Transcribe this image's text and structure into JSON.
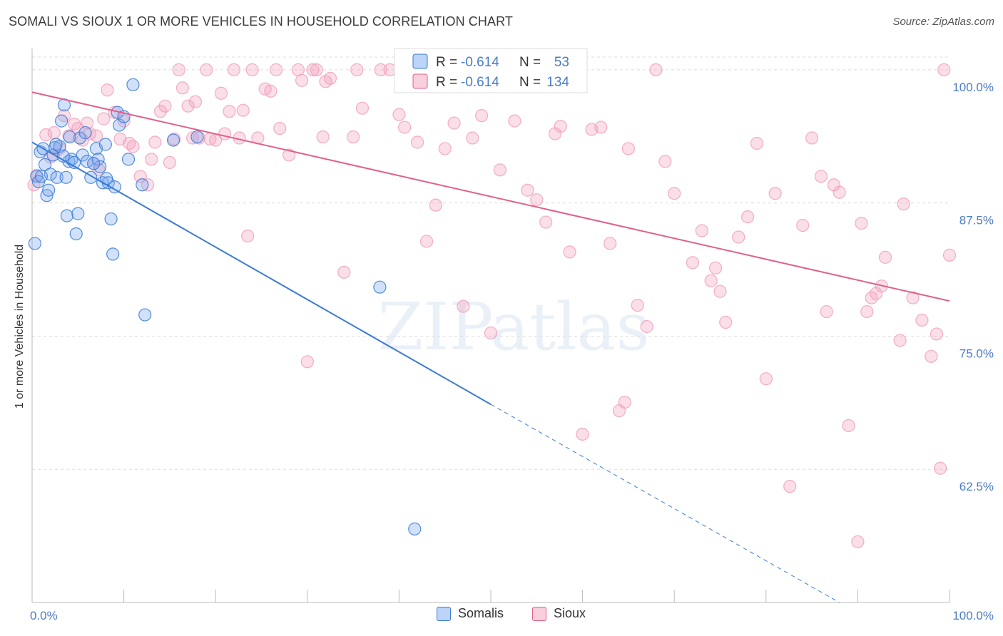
{
  "colors": {
    "somalis": "#7aaaf0",
    "somalis_line": "#3a7bd5",
    "sioux": "#f2a0bc",
    "sioux_line": "#e0608c",
    "tick_text": "#4a7cc7"
  },
  "chart_data": {
    "type": "scatter",
    "title": "SOMALI VS SIOUX 1 OR MORE VEHICLES IN HOUSEHOLD CORRELATION CHART",
    "source": "Source: ZipAtlas.com",
    "ylabel": "1 or more Vehicles in Household",
    "xlim": [
      0,
      100
    ],
    "ylim": [
      50,
      102
    ],
    "x_tick_labels": [
      "0.0%",
      "100.0%"
    ],
    "y_ticks": [
      62.5,
      75.0,
      87.5,
      100.0
    ],
    "y_tick_labels": [
      "62.5%",
      "75.0%",
      "87.5%",
      "100.0%"
    ],
    "grid": true,
    "watermark": "ZIPatlas",
    "legend": {
      "position": "top-center",
      "rows": [
        {
          "r_label": "R = ",
          "r_value": "-0.614",
          "n_label": "N = ",
          "n_value": "53"
        },
        {
          "r_label": "R = ",
          "r_value": "-0.614",
          "n_label": "N = ",
          "n_value": "134"
        }
      ]
    },
    "series": [
      {
        "name": "Somalis",
        "trend": {
          "x0": 0,
          "y0": 93.2,
          "x1": 50,
          "y1": 68.6,
          "dash_to_x": 88,
          "dash_to_y": 50.0
        },
        "points": [
          [
            0.3,
            83.7
          ],
          [
            0.5,
            90.0
          ],
          [
            0.7,
            89.5
          ],
          [
            0.9,
            92.3
          ],
          [
            1.2,
            92.6
          ],
          [
            1.4,
            91.1
          ],
          [
            1.6,
            88.2
          ],
          [
            1.8,
            88.7
          ],
          [
            2.0,
            90.2
          ],
          [
            2.3,
            92.0
          ],
          [
            2.5,
            92.7
          ],
          [
            2.7,
            89.9
          ],
          [
            3.0,
            92.8
          ],
          [
            3.2,
            95.2
          ],
          [
            3.5,
            96.7
          ],
          [
            3.7,
            89.9
          ],
          [
            3.8,
            86.3
          ],
          [
            4.0,
            91.4
          ],
          [
            4.3,
            91.6
          ],
          [
            4.6,
            91.3
          ],
          [
            4.8,
            84.6
          ],
          [
            5.0,
            86.5
          ],
          [
            5.2,
            93.6
          ],
          [
            5.5,
            92.0
          ],
          [
            5.8,
            94.1
          ],
          [
            6.0,
            91.4
          ],
          [
            6.4,
            89.9
          ],
          [
            7.0,
            92.6
          ],
          [
            7.2,
            91.6
          ],
          [
            7.4,
            90.9
          ],
          [
            7.7,
            89.4
          ],
          [
            8.0,
            93.0
          ],
          [
            8.3,
            89.4
          ],
          [
            8.6,
            86.0
          ],
          [
            8.8,
            82.7
          ],
          [
            9.0,
            89.0
          ],
          [
            9.3,
            96.0
          ],
          [
            9.5,
            94.8
          ],
          [
            10.0,
            95.6
          ],
          [
            10.5,
            91.6
          ],
          [
            11.0,
            98.6
          ],
          [
            12.0,
            89.2
          ],
          [
            12.3,
            77.0
          ],
          [
            15.4,
            93.4
          ],
          [
            18.0,
            93.7
          ],
          [
            37.9,
            79.6
          ],
          [
            41.7,
            56.9
          ],
          [
            1.0,
            90.0
          ],
          [
            2.6,
            93.0
          ],
          [
            6.7,
            91.2
          ],
          [
            4.1,
            93.7
          ],
          [
            8.1,
            89.8
          ],
          [
            3.4,
            91.9
          ]
        ]
      },
      {
        "name": "Sioux",
        "trend": {
          "x0": 0,
          "y0": 97.9,
          "x1": 100,
          "y1": 78.3
        },
        "points": [
          [
            0.2,
            89.2
          ],
          [
            0.5,
            90.1
          ],
          [
            1.5,
            93.9
          ],
          [
            2.0,
            91.8
          ],
          [
            2.4,
            94.1
          ],
          [
            3.0,
            92.6
          ],
          [
            3.5,
            95.7
          ],
          [
            4.0,
            93.8
          ],
          [
            4.6,
            94.9
          ],
          [
            5.0,
            94.5
          ],
          [
            5.5,
            93.4
          ],
          [
            6.0,
            95.0
          ],
          [
            6.3,
            94.0
          ],
          [
            6.7,
            91.2
          ],
          [
            7.0,
            93.8
          ],
          [
            7.3,
            90.6
          ],
          [
            7.8,
            95.4
          ],
          [
            8.2,
            98.1
          ],
          [
            9.0,
            96.0
          ],
          [
            9.6,
            93.5
          ],
          [
            10.0,
            95.2
          ],
          [
            10.6,
            93.1
          ],
          [
            11.0,
            92.8
          ],
          [
            11.8,
            90.0
          ],
          [
            12.6,
            89.2
          ],
          [
            13.0,
            91.6
          ],
          [
            13.4,
            93.2
          ],
          [
            14.0,
            96.1
          ],
          [
            14.5,
            96.6
          ],
          [
            15.0,
            91.3
          ],
          [
            15.5,
            93.5
          ],
          [
            16.0,
            100.0
          ],
          [
            16.4,
            98.3
          ],
          [
            17.0,
            96.6
          ],
          [
            17.5,
            93.6
          ],
          [
            17.8,
            97.0
          ],
          [
            18.2,
            93.6
          ],
          [
            19.0,
            100.0
          ],
          [
            19.4,
            93.5
          ],
          [
            20.0,
            93.4
          ],
          [
            20.6,
            97.8
          ],
          [
            21.0,
            94.0
          ],
          [
            21.5,
            96.1
          ],
          [
            22.0,
            100.0
          ],
          [
            22.6,
            93.6
          ],
          [
            23.0,
            96.2
          ],
          [
            23.5,
            84.4
          ],
          [
            24.0,
            100.0
          ],
          [
            24.6,
            93.6
          ],
          [
            25.4,
            98.2
          ],
          [
            26.0,
            98.0
          ],
          [
            26.6,
            100.0
          ],
          [
            27.0,
            94.5
          ],
          [
            28.0,
            92.0
          ],
          [
            29.0,
            100.0
          ],
          [
            29.4,
            99.0
          ],
          [
            30.0,
            72.6
          ],
          [
            30.6,
            100.0
          ],
          [
            31.0,
            100.0
          ],
          [
            31.7,
            93.7
          ],
          [
            32.0,
            98.9
          ],
          [
            32.5,
            99.2
          ],
          [
            34.0,
            81.0
          ],
          [
            35.0,
            93.7
          ],
          [
            35.4,
            100.0
          ],
          [
            36.0,
            96.4
          ],
          [
            38.0,
            100.0
          ],
          [
            39.0,
            100.0
          ],
          [
            40.0,
            95.8
          ],
          [
            40.6,
            94.6
          ],
          [
            42.0,
            93.2
          ],
          [
            43.0,
            83.9
          ],
          [
            44.0,
            87.3
          ],
          [
            45.0,
            92.6
          ],
          [
            46.0,
            95.0
          ],
          [
            47.0,
            77.8
          ],
          [
            48.0,
            93.6
          ],
          [
            49.0,
            95.7
          ],
          [
            50.0,
            75.3
          ],
          [
            51.0,
            90.6
          ],
          [
            52.6,
            95.2
          ],
          [
            54.0,
            88.7
          ],
          [
            55.0,
            87.8
          ],
          [
            56.0,
            85.7
          ],
          [
            57.0,
            94.0
          ],
          [
            57.6,
            94.7
          ],
          [
            58.6,
            82.9
          ],
          [
            60.0,
            65.8
          ],
          [
            61.0,
            94.4
          ],
          [
            62.0,
            94.6
          ],
          [
            63.0,
            83.7
          ],
          [
            64.0,
            68.0
          ],
          [
            64.6,
            68.8
          ],
          [
            65.0,
            92.6
          ],
          [
            66.0,
            77.9
          ],
          [
            67.0,
            75.9
          ],
          [
            68.0,
            100.0
          ],
          [
            69.0,
            91.4
          ],
          [
            70.0,
            88.4
          ],
          [
            72.0,
            81.9
          ],
          [
            73.0,
            84.9
          ],
          [
            74.0,
            80.2
          ],
          [
            74.5,
            81.4
          ],
          [
            75.0,
            79.2
          ],
          [
            75.6,
            76.3
          ],
          [
            77.0,
            84.3
          ],
          [
            78.0,
            86.2
          ],
          [
            79.0,
            93.1
          ],
          [
            80.0,
            71.0
          ],
          [
            81.0,
            88.4
          ],
          [
            82.6,
            60.9
          ],
          [
            84.0,
            85.4
          ],
          [
            85.0,
            93.6
          ],
          [
            86.0,
            90.0
          ],
          [
            86.6,
            77.3
          ],
          [
            87.4,
            89.2
          ],
          [
            88.0,
            88.5
          ],
          [
            89.0,
            66.6
          ],
          [
            90.0,
            55.7
          ],
          [
            90.4,
            85.6
          ],
          [
            91.0,
            77.3
          ],
          [
            91.5,
            78.6
          ],
          [
            92.0,
            79.0
          ],
          [
            92.6,
            79.7
          ],
          [
            93.0,
            82.4
          ],
          [
            94.6,
            74.6
          ],
          [
            95.0,
            87.4
          ],
          [
            96.0,
            78.6
          ],
          [
            97.0,
            76.5
          ],
          [
            98.0,
            73.1
          ],
          [
            98.6,
            75.2
          ],
          [
            99.0,
            62.6
          ],
          [
            99.4,
            100.0
          ],
          [
            100.0,
            82.6
          ]
        ]
      }
    ]
  }
}
